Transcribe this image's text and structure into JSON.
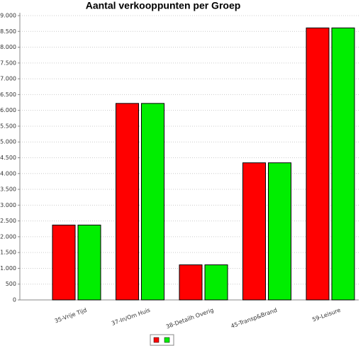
{
  "chart_data": {
    "type": "bar",
    "title": "Aantal verkooppunten per Groep",
    "categories": [
      "35-Vrije Tijd",
      "37-In/Om Huis",
      "38-Detailh Overig",
      "45-Transp&Brand",
      "59-Leisure"
    ],
    "series": [
      {
        "color": "#ff0000",
        "values": [
          2370,
          6220,
          1110,
          4340,
          8610
        ]
      },
      {
        "color": "#00ee00",
        "values": [
          2370,
          6220,
          1110,
          4340,
          8610
        ]
      }
    ],
    "ylim": [
      0,
      9000
    ],
    "yticks": [
      0,
      {
        "value": 500,
        "label": "500"
      },
      {
        "value": 1000,
        "label": "1.000"
      },
      {
        "value": 1500,
        "label": "1.500"
      },
      {
        "value": 2000,
        "label": "2.000"
      },
      {
        "value": 2500,
        "label": "2.500"
      },
      {
        "value": 3000,
        "label": "3.000"
      },
      {
        "value": 3500,
        "label": "3.500"
      },
      {
        "value": 4000,
        "label": "4.000"
      },
      {
        "value": 4500,
        "label": "4.500"
      },
      {
        "value": 5000,
        "label": "5.000"
      },
      {
        "value": 5500,
        "label": "5.500"
      },
      {
        "value": 6000,
        "label": "6.000"
      },
      {
        "value": 6500,
        "label": "6.500"
      },
      {
        "value": 7000,
        "label": "7.000"
      },
      {
        "value": 7500,
        "label": "7.500"
      },
      {
        "value": 8000,
        "label": "8.000"
      },
      {
        "value": 8500,
        "label": "8.500"
      },
      {
        "value": 9000,
        "label": "9.000"
      }
    ],
    "grid": true
  }
}
